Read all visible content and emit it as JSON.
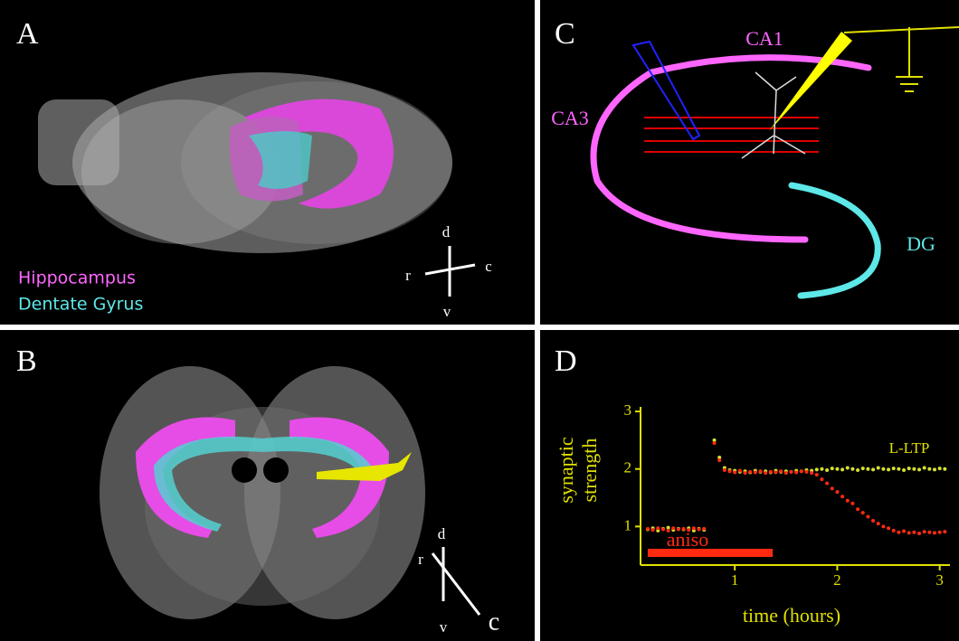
{
  "panels": {
    "A": {
      "letter": "A",
      "labels": [
        "Hippocampus",
        "Dentate Gyrus"
      ],
      "axes": {
        "d": "d",
        "r": "r",
        "c": "c",
        "v": "v"
      }
    },
    "B": {
      "letter": "B",
      "axes": {
        "d": "d",
        "r": "r",
        "c": "c",
        "v": "v"
      }
    },
    "C": {
      "letter": "C",
      "labels": {
        "ca1": "CA1",
        "ca3": "CA3",
        "dg": "DG"
      }
    },
    "D": {
      "letter": "D"
    }
  },
  "chart_data": {
    "type": "scatter",
    "x_label": "time (hours)",
    "y_label": [
      "synaptic",
      "strength"
    ],
    "x": [
      0.15,
      0.2,
      0.25,
      0.3,
      0.35,
      0.4,
      0.45,
      0.5,
      0.55,
      0.6,
      0.65,
      0.7,
      0.75,
      0.8,
      0.85,
      0.9,
      0.95,
      1.0,
      1.05,
      1.1,
      1.15,
      1.2,
      1.25,
      1.3,
      1.35,
      1.4,
      1.45,
      1.5,
      1.55,
      1.6,
      1.65,
      1.7,
      1.75,
      1.8,
      1.85,
      1.9,
      1.95,
      2.0,
      2.05,
      2.1,
      2.15,
      2.2,
      2.25,
      2.3,
      2.35,
      2.4,
      2.45,
      2.5,
      2.55,
      2.6,
      2.65,
      2.7,
      2.75,
      2.8,
      2.85,
      2.9,
      2.95,
      3.0,
      3.05
    ],
    "series": [
      {
        "name": "L-LTP",
        "color": "#d8e030",
        "values": [
          0.95,
          0.97,
          0.93,
          0.96,
          0.98,
          0.94,
          0.96,
          0.95,
          0.97,
          0.93,
          0.96,
          0.94,
          null,
          2.5,
          2.2,
          2.02,
          1.98,
          1.97,
          1.95,
          1.96,
          1.94,
          1.97,
          1.95,
          1.96,
          1.94,
          1.97,
          1.95,
          1.96,
          1.95,
          1.97,
          1.96,
          1.98,
          1.97,
          1.99,
          2.0,
          1.98,
          2.01,
          2.0,
          1.99,
          2.02,
          2.0,
          1.98,
          2.01,
          2.0,
          1.99,
          2.02,
          2.0,
          1.99,
          2.01,
          2.0,
          1.98,
          2.01,
          2.0,
          1.99,
          2.02,
          2.0,
          1.99,
          2.01,
          2.0
        ]
      },
      {
        "name": "aniso",
        "color": "#ff2a10",
        "values": [
          0.96,
          0.94,
          0.97,
          0.95,
          0.93,
          0.97,
          0.95,
          0.96,
          0.94,
          0.97,
          0.95,
          0.96,
          null,
          2.45,
          2.15,
          1.98,
          1.96,
          1.94,
          1.97,
          1.93,
          1.95,
          1.94,
          1.96,
          1.93,
          1.95,
          1.94,
          1.96,
          1.93,
          1.95,
          1.94,
          1.96,
          1.95,
          1.93,
          1.9,
          1.82,
          1.75,
          1.66,
          1.6,
          1.52,
          1.45,
          1.4,
          1.3,
          1.24,
          1.17,
          1.1,
          1.05,
          1.0,
          0.97,
          0.93,
          0.9,
          0.92,
          0.89,
          0.9,
          0.88,
          0.91,
          0.9,
          0.89,
          0.9,
          0.91
        ]
      }
    ],
    "treatment_span": [
      0.15,
      1.37
    ],
    "xlim": [
      0.08,
      3.1
    ],
    "xticks": [
      1,
      2,
      3
    ],
    "ylim": [
      0.33,
      3.08
    ],
    "yticks": [
      1,
      2,
      3
    ],
    "axis_color": "#e0e000"
  }
}
